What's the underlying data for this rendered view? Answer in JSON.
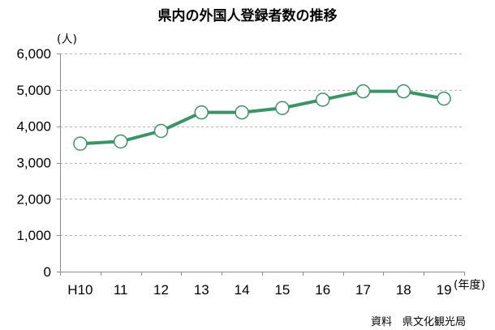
{
  "chart_data": {
    "type": "line",
    "title": "県内の外国人登録者数の推移",
    "ylabel": "(人)",
    "xlabel": "(年度)",
    "source": "資料　県文化観光局",
    "categories": [
      "H10",
      "11",
      "12",
      "13",
      "14",
      "15",
      "16",
      "17",
      "18",
      "19"
    ],
    "series": [
      {
        "values": [
          3520,
          3580,
          3870,
          4380,
          4380,
          4500,
          4730,
          4960,
          4960,
          4760
        ]
      }
    ],
    "ylim": [
      0,
      6000
    ],
    "yticks": [
      0,
      1000,
      2000,
      3000,
      4000,
      5000,
      6000
    ],
    "ytick_labels": [
      "0",
      "1,000",
      "2,000",
      "3,000",
      "4,000",
      "5,000",
      "6,000"
    ],
    "grid": true,
    "line_color": "#3a9468",
    "grid_color": "#b4b4b4",
    "axis_color": "#8c8c8c"
  }
}
